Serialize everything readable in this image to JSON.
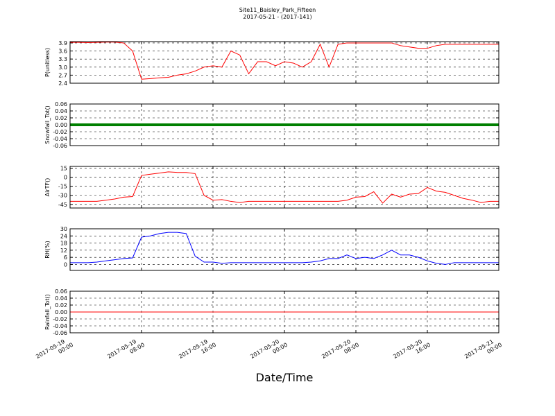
{
  "title": "Site11_Baisley_Park_Fifteen",
  "subtitle": "2017-05-21 - (2017-141)",
  "xlabel": "Date/Time",
  "chart_data": [
    {
      "type": "line",
      "ylabel": "P(unitless)",
      "color": "#ff0000",
      "grid": true,
      "x": [
        "2017-05-19 00:00",
        "2017-05-19 01:00",
        "2017-05-19 02:00",
        "2017-05-19 03:00",
        "2017-05-19 04:00",
        "2017-05-19 05:00",
        "2017-05-19 06:00",
        "2017-05-19 07:00",
        "2017-05-19 08:00",
        "2017-05-19 09:00",
        "2017-05-19 10:00",
        "2017-05-19 11:00",
        "2017-05-19 12:00",
        "2017-05-19 13:00",
        "2017-05-19 14:00",
        "2017-05-19 15:00",
        "2017-05-19 16:00",
        "2017-05-19 17:00",
        "2017-05-19 18:00",
        "2017-05-19 19:00",
        "2017-05-19 20:00",
        "2017-05-19 21:00",
        "2017-05-19 22:00",
        "2017-05-19 23:00",
        "2017-05-20 00:00",
        "2017-05-20 01:00",
        "2017-05-20 02:00",
        "2017-05-20 03:00",
        "2017-05-20 04:00",
        "2017-05-20 05:00",
        "2017-05-20 06:00",
        "2017-05-20 07:00",
        "2017-05-20 08:00",
        "2017-05-20 09:00",
        "2017-05-20 10:00",
        "2017-05-20 11:00",
        "2017-05-20 12:00",
        "2017-05-20 13:00",
        "2017-05-20 14:00",
        "2017-05-20 15:00",
        "2017-05-20 16:00",
        "2017-05-20 17:00",
        "2017-05-20 18:00",
        "2017-05-20 19:00",
        "2017-05-20 20:00",
        "2017-05-20 21:00",
        "2017-05-20 22:00",
        "2017-05-20 23:00",
        "2017-05-21 00:00"
      ],
      "values": [
        3.92,
        3.92,
        3.91,
        3.92,
        3.93,
        3.93,
        3.9,
        3.6,
        2.55,
        2.57,
        2.6,
        2.62,
        2.7,
        2.75,
        2.85,
        3.0,
        3.05,
        3.0,
        3.6,
        3.45,
        2.75,
        3.2,
        3.2,
        3.05,
        3.2,
        3.15,
        3.0,
        3.2,
        3.85,
        3.0,
        3.85,
        3.9,
        3.9,
        3.9,
        3.9,
        3.9,
        3.9,
        3.8,
        3.75,
        3.7,
        3.7,
        3.8,
        3.85,
        3.85,
        3.85,
        3.85,
        3.85,
        3.85,
        3.85
      ],
      "xlim": [
        "2017-05-19 00:00",
        "2017-05-21 00:00"
      ],
      "xticks": [
        "2017-05-19 00:00",
        "2017-05-19 08:00",
        "2017-05-19 16:00",
        "2017-05-20 00:00",
        "2017-05-20 08:00",
        "2017-05-20 16:00",
        "2017-05-21 00:00"
      ],
      "ylim": [
        2.4,
        3.95
      ],
      "yticks": [
        2.4,
        2.7,
        {
          "value": 3,
          "label": "3.0"
        },
        3.3,
        3.6,
        3.9
      ]
    },
    {
      "type": "line",
      "ylabel": "Snowfall_Tot()",
      "color": "#008000",
      "grid": true,
      "linewidth": 4,
      "x": [
        "2017-05-19 00:00",
        "2017-05-19 01:00",
        "2017-05-19 02:00",
        "2017-05-19 03:00",
        "2017-05-19 04:00",
        "2017-05-19 05:00",
        "2017-05-19 06:00",
        "2017-05-19 07:00",
        "2017-05-19 08:00",
        "2017-05-19 09:00",
        "2017-05-19 10:00",
        "2017-05-19 11:00",
        "2017-05-19 12:00",
        "2017-05-19 13:00",
        "2017-05-19 14:00",
        "2017-05-19 15:00",
        "2017-05-19 16:00",
        "2017-05-19 17:00",
        "2017-05-19 18:00",
        "2017-05-19 19:00",
        "2017-05-19 20:00",
        "2017-05-19 21:00",
        "2017-05-19 22:00",
        "2017-05-19 23:00",
        "2017-05-20 00:00",
        "2017-05-20 01:00",
        "2017-05-20 02:00",
        "2017-05-20 03:00",
        "2017-05-20 04:00",
        "2017-05-20 05:00",
        "2017-05-20 06:00",
        "2017-05-20 07:00",
        "2017-05-20 08:00",
        "2017-05-20 09:00",
        "2017-05-20 10:00",
        "2017-05-20 11:00",
        "2017-05-20 12:00",
        "2017-05-20 13:00",
        "2017-05-20 14:00",
        "2017-05-20 15:00",
        "2017-05-20 16:00",
        "2017-05-20 17:00",
        "2017-05-20 18:00",
        "2017-05-20 19:00",
        "2017-05-20 20:00",
        "2017-05-20 21:00",
        "2017-05-20 22:00",
        "2017-05-20 23:00",
        "2017-05-21 00:00"
      ],
      "values": [
        0,
        0,
        0,
        0,
        0,
        0,
        0,
        0,
        0,
        0,
        0,
        0,
        0,
        0,
        0,
        0,
        0,
        0,
        0,
        0,
        0,
        0,
        0,
        0,
        0,
        0,
        0,
        0,
        0,
        0,
        0,
        0,
        0,
        0,
        0,
        0,
        0,
        0,
        0,
        0,
        0,
        0,
        0,
        0,
        0,
        0,
        0,
        0,
        0
      ],
      "xlim": [
        "2017-05-19 00:00",
        "2017-05-21 00:00"
      ],
      "xticks": [
        "2017-05-19 00:00",
        "2017-05-19 08:00",
        "2017-05-19 16:00",
        "2017-05-20 00:00",
        "2017-05-20 08:00",
        "2017-05-20 16:00",
        "2017-05-21 00:00"
      ],
      "ylim": [
        -0.06,
        0.06
      ],
      "yticks": [
        -0.06,
        -0.04,
        -0.02,
        {
          "value": 0,
          "label": "0.00"
        },
        0.02,
        0.04,
        0.06
      ]
    },
    {
      "type": "line",
      "ylabel": "AirTF()",
      "color": "#ff0000",
      "grid": true,
      "x": [
        "2017-05-19 00:00",
        "2017-05-19 01:00",
        "2017-05-19 02:00",
        "2017-05-19 03:00",
        "2017-05-19 04:00",
        "2017-05-19 05:00",
        "2017-05-19 06:00",
        "2017-05-19 07:00",
        "2017-05-19 08:00",
        "2017-05-19 09:00",
        "2017-05-19 10:00",
        "2017-05-19 11:00",
        "2017-05-19 12:00",
        "2017-05-19 13:00",
        "2017-05-19 14:00",
        "2017-05-19 15:00",
        "2017-05-19 16:00",
        "2017-05-19 17:00",
        "2017-05-19 18:00",
        "2017-05-19 19:00",
        "2017-05-19 20:00",
        "2017-05-19 21:00",
        "2017-05-19 22:00",
        "2017-05-19 23:00",
        "2017-05-20 00:00",
        "2017-05-20 01:00",
        "2017-05-20 02:00",
        "2017-05-20 03:00",
        "2017-05-20 04:00",
        "2017-05-20 05:00",
        "2017-05-20 06:00",
        "2017-05-20 07:00",
        "2017-05-20 08:00",
        "2017-05-20 09:00",
        "2017-05-20 10:00",
        "2017-05-20 11:00",
        "2017-05-20 12:00",
        "2017-05-20 13:00",
        "2017-05-20 14:00",
        "2017-05-20 15:00",
        "2017-05-20 16:00",
        "2017-05-20 17:00",
        "2017-05-20 18:00",
        "2017-05-20 19:00",
        "2017-05-20 20:00",
        "2017-05-20 21:00",
        "2017-05-20 22:00",
        "2017-05-20 23:00",
        "2017-05-21 00:00"
      ],
      "values": [
        -40,
        -40,
        -40,
        -40,
        -38,
        -36,
        -33,
        -32,
        3,
        5,
        7,
        9,
        8,
        8,
        6,
        -30,
        -38,
        -37,
        -40,
        -42,
        -40,
        -40,
        -40,
        -40,
        -40,
        -40,
        -40,
        -40,
        -40,
        -40,
        -40,
        -38,
        -33,
        -32,
        -24,
        -43,
        -28,
        -33,
        -28,
        -27,
        -17,
        -23,
        -25,
        -30,
        -35,
        -38,
        -42,
        -40,
        -40
      ],
      "xlim": [
        "2017-05-19 00:00",
        "2017-05-21 00:00"
      ],
      "xticks": [
        "2017-05-19 00:00",
        "2017-05-19 08:00",
        "2017-05-19 16:00",
        "2017-05-20 00:00",
        "2017-05-20 08:00",
        "2017-05-20 16:00",
        "2017-05-21 00:00"
      ],
      "ylim": [
        -51,
        18
      ],
      "yticks": [
        -45,
        -30,
        -15,
        0,
        15
      ]
    },
    {
      "type": "line",
      "ylabel": "RH(%)",
      "color": "#0000ff",
      "grid": true,
      "x": [
        "2017-05-19 00:00",
        "2017-05-19 01:00",
        "2017-05-19 02:00",
        "2017-05-19 03:00",
        "2017-05-19 04:00",
        "2017-05-19 05:00",
        "2017-05-19 06:00",
        "2017-05-19 07:00",
        "2017-05-19 08:00",
        "2017-05-19 09:00",
        "2017-05-19 10:00",
        "2017-05-19 11:00",
        "2017-05-19 12:00",
        "2017-05-19 13:00",
        "2017-05-19 14:00",
        "2017-05-19 15:00",
        "2017-05-19 16:00",
        "2017-05-19 17:00",
        "2017-05-19 18:00",
        "2017-05-19 19:00",
        "2017-05-19 20:00",
        "2017-05-19 21:00",
        "2017-05-19 22:00",
        "2017-05-19 23:00",
        "2017-05-20 00:00",
        "2017-05-20 01:00",
        "2017-05-20 02:00",
        "2017-05-20 03:00",
        "2017-05-20 04:00",
        "2017-05-20 05:00",
        "2017-05-20 06:00",
        "2017-05-20 07:00",
        "2017-05-20 08:00",
        "2017-05-20 09:00",
        "2017-05-20 10:00",
        "2017-05-20 11:00",
        "2017-05-20 12:00",
        "2017-05-20 13:00",
        "2017-05-20 14:00",
        "2017-05-20 15:00",
        "2017-05-20 16:00",
        "2017-05-20 17:00",
        "2017-05-20 18:00",
        "2017-05-20 19:00",
        "2017-05-20 20:00",
        "2017-05-20 21:00",
        "2017-05-20 22:00",
        "2017-05-20 23:00",
        "2017-05-21 00:00"
      ],
      "values": [
        1.5,
        1.5,
        1.5,
        2,
        3,
        4,
        5,
        5.5,
        23,
        24,
        26,
        27,
        27,
        26,
        7,
        2,
        2,
        1,
        1.5,
        1.5,
        1.5,
        1.5,
        1.5,
        1.5,
        1.5,
        1.5,
        1.5,
        2,
        3,
        5,
        5,
        8,
        5,
        6,
        5,
        8,
        12,
        8,
        8,
        6,
        3,
        1,
        0,
        1.5,
        1.5,
        1.5,
        1.5,
        1.5,
        1.5
      ],
      "xlim": [
        "2017-05-19 00:00",
        "2017-05-21 00:00"
      ],
      "xticks": [
        "2017-05-19 00:00",
        "2017-05-19 08:00",
        "2017-05-19 16:00",
        "2017-05-20 00:00",
        "2017-05-20 08:00",
        "2017-05-20 16:00",
        "2017-05-21 00:00"
      ],
      "ylim": [
        -5,
        30
      ],
      "yticks": [
        0,
        6,
        12,
        18,
        24,
        30
      ]
    },
    {
      "type": "line",
      "ylabel": "Rainfall_Tot()",
      "color": "#ff0000",
      "grid": true,
      "x": [
        "2017-05-19 00:00",
        "2017-05-19 01:00",
        "2017-05-19 02:00",
        "2017-05-19 03:00",
        "2017-05-19 04:00",
        "2017-05-19 05:00",
        "2017-05-19 06:00",
        "2017-05-19 07:00",
        "2017-05-19 08:00",
        "2017-05-19 09:00",
        "2017-05-19 10:00",
        "2017-05-19 11:00",
        "2017-05-19 12:00",
        "2017-05-19 13:00",
        "2017-05-19 14:00",
        "2017-05-19 15:00",
        "2017-05-19 16:00",
        "2017-05-19 17:00",
        "2017-05-19 18:00",
        "2017-05-19 19:00",
        "2017-05-19 20:00",
        "2017-05-19 21:00",
        "2017-05-19 22:00",
        "2017-05-19 23:00",
        "2017-05-20 00:00",
        "2017-05-20 01:00",
        "2017-05-20 02:00",
        "2017-05-20 03:00",
        "2017-05-20 04:00",
        "2017-05-20 05:00",
        "2017-05-20 06:00",
        "2017-05-20 07:00",
        "2017-05-20 08:00",
        "2017-05-20 09:00",
        "2017-05-20 10:00",
        "2017-05-20 11:00",
        "2017-05-20 12:00",
        "2017-05-20 13:00",
        "2017-05-20 14:00",
        "2017-05-20 15:00",
        "2017-05-20 16:00",
        "2017-05-20 17:00",
        "2017-05-20 18:00",
        "2017-05-20 19:00",
        "2017-05-20 20:00",
        "2017-05-20 21:00",
        "2017-05-20 22:00",
        "2017-05-20 23:00",
        "2017-05-21 00:00"
      ],
      "values": [
        0,
        0,
        0,
        0,
        0,
        0,
        0,
        0,
        0,
        0,
        0,
        0,
        0,
        0,
        0,
        0,
        0,
        0,
        0,
        0,
        0,
        0,
        0,
        0,
        0,
        0,
        0,
        0,
        0,
        0,
        0,
        0,
        0,
        0,
        0,
        0,
        0,
        0,
        0,
        0,
        0,
        0,
        0,
        0,
        0,
        0,
        0,
        0,
        0
      ],
      "xlim": [
        "2017-05-19 00:00",
        "2017-05-21 00:00"
      ],
      "xticks": [
        "2017-05-19 00:00",
        "2017-05-19 08:00",
        "2017-05-19 16:00",
        "2017-05-20 00:00",
        "2017-05-20 08:00",
        "2017-05-20 16:00",
        "2017-05-21 00:00"
      ],
      "ylim": [
        -0.06,
        0.06
      ],
      "yticks": [
        -0.06,
        -0.04,
        -0.02,
        {
          "value": 0,
          "label": "0.00"
        },
        0.02,
        0.04,
        0.06
      ]
    }
  ]
}
